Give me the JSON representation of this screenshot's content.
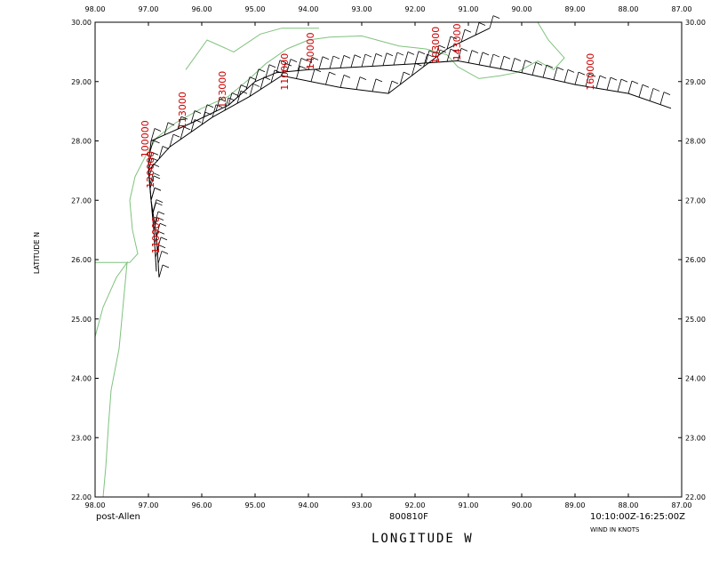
{
  "chart_data": {
    "type": "scatter",
    "xlabel": "LONGITUDE   W",
    "ylabel": "LATITUDE   N",
    "xlim": [
      98.0,
      87.0
    ],
    "ylim": [
      22.0,
      30.0
    ],
    "x_ticks": [
      "98.00",
      "97.00",
      "96.00",
      "95.00",
      "94.00",
      "93.00",
      "92.00",
      "91.00",
      "90.00",
      "89.00",
      "88.00",
      "87.00"
    ],
    "y_ticks": [
      "22.00",
      "23.00",
      "24.00",
      "25.00",
      "26.00",
      "27.00",
      "28.00",
      "29.00",
      "30.00"
    ],
    "grid": false,
    "flight_track": [
      [
        96.8,
        25.7
      ],
      [
        96.85,
        26.4
      ],
      [
        96.95,
        27.0
      ],
      [
        97.0,
        27.6
      ],
      [
        96.95,
        28.0
      ],
      [
        96.7,
        28.1
      ],
      [
        96.2,
        28.3
      ],
      [
        95.5,
        28.6
      ],
      [
        95.0,
        29.0
      ],
      [
        94.6,
        29.15
      ],
      [
        94.0,
        29.2
      ],
      [
        93.0,
        29.25
      ],
      [
        92.0,
        29.3
      ],
      [
        91.2,
        29.35
      ],
      [
        90.6,
        29.25
      ],
      [
        90.0,
        29.15
      ],
      [
        89.0,
        28.95
      ],
      [
        88.0,
        28.8
      ],
      [
        87.2,
        28.55
      ]
    ],
    "return_track": [
      [
        90.6,
        29.9
      ],
      [
        91.4,
        29.55
      ],
      [
        92.5,
        28.8
      ],
      [
        93.4,
        28.9
      ],
      [
        94.5,
        29.1
      ],
      [
        95.1,
        28.75
      ],
      [
        95.8,
        28.4
      ],
      [
        96.6,
        27.9
      ],
      [
        97.0,
        27.5
      ],
      [
        96.9,
        26.5
      ],
      [
        96.85,
        25.8
      ]
    ],
    "time_labels": [
      {
        "text": "100000",
        "lon": 97.0,
        "lat": 27.72
      },
      {
        "text": "120000",
        "lon": 96.9,
        "lat": 27.2
      },
      {
        "text": "110000",
        "lon": 96.8,
        "lat": 26.1
      },
      {
        "text": "113000",
        "lon": 96.3,
        "lat": 28.2
      },
      {
        "text": "133000",
        "lon": 95.55,
        "lat": 28.55
      },
      {
        "text": "110000",
        "lon": 94.38,
        "lat": 28.85
      },
      {
        "text": "140000",
        "lon": 93.9,
        "lat": 29.2
      },
      {
        "text": "103000",
        "lon": 91.55,
        "lat": 29.3
      },
      {
        "text": "143000",
        "lon": 91.15,
        "lat": 29.35
      },
      {
        "text": "160000",
        "lon": 88.65,
        "lat": 28.85
      }
    ],
    "barb_wind_knots": 20
  },
  "footer": {
    "storm": "post-Allen",
    "mission": "800810F",
    "time_range": "10:10:00Z-16:25:00Z",
    "wind_units": "WIND IN KNOTS"
  },
  "colors": {
    "coast": "#7fc27f",
    "track": "#000000",
    "time_label": "#cc0000"
  }
}
